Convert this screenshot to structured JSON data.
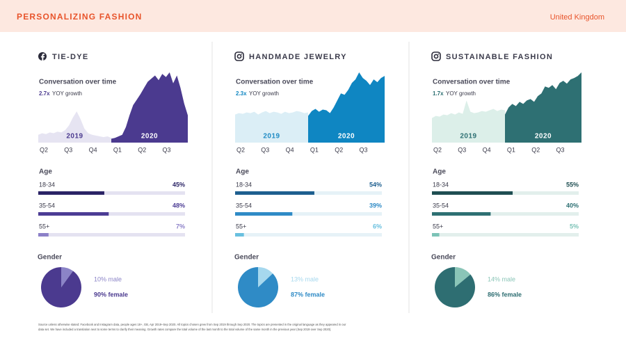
{
  "header": {
    "title": "PERSONALIZING FASHION",
    "region": "United Kingdom"
  },
  "panels": [
    {
      "icon": "facebook",
      "title": "TIE-DYE",
      "conversation": {
        "title": "Conversation over time",
        "growth": "2.7x",
        "growth_label": "YOY growth",
        "quarters": [
          "Q2",
          "Q3",
          "Q4",
          "Q1",
          "Q2",
          "Q3"
        ],
        "series": [
          {
            "name": "2019",
            "color": "#e6e4f2",
            "label_color": "#4b3a8f",
            "values": [
              10,
              12,
              11,
              13,
              12,
              14,
              13,
              16,
              22,
              32,
              40,
              30,
              18,
              12,
              10,
              9,
              8,
              7,
              8,
              6
            ]
          },
          {
            "name": "2020",
            "color": "#4b3a8f",
            "label_color": "#ffffff",
            "values": [
              5,
              6,
              8,
              10,
              20,
              35,
              48,
              55,
              62,
              70,
              78,
              82,
              86,
              80,
              88,
              84,
              90,
              76,
              86,
              70,
              50,
              35
            ]
          }
        ]
      },
      "age": {
        "title": "Age",
        "categories": [
          "18-34",
          "35-54",
          "55+"
        ],
        "values": [
          45,
          48,
          7
        ],
        "value_labels": [
          "45%",
          "48%",
          "7%"
        ],
        "xlim": [
          0,
          100
        ],
        "colors": [
          "#2b2466",
          "#4c3c95",
          "#8c80c8"
        ],
        "track_color": "#e4e2f1"
      },
      "gender": {
        "title": "Gender",
        "values": [
          10,
          90
        ],
        "value_labels": [
          "10% male",
          "90% female"
        ],
        "colors": [
          "#8b84c7",
          "#4b3a8f"
        ]
      }
    },
    {
      "icon": "instagram",
      "title": "HANDMADE JEWELRY",
      "conversation": {
        "title": "Conversation over time",
        "growth": "2.3x",
        "growth_label": "YOY growth",
        "quarters": [
          "Q2",
          "Q3",
          "Q4",
          "Q1",
          "Q2",
          "Q3"
        ],
        "series": [
          {
            "name": "2019",
            "color": "#dbeef6",
            "label_color": "#1f8bc4",
            "values": [
              40,
              42,
              41,
              43,
              42,
              44,
              40,
              43,
              45,
              42,
              44,
              43,
              41,
              44,
              42,
              43,
              45,
              44,
              42,
              43
            ]
          },
          {
            "name": "2020",
            "color": "#0f86c2",
            "label_color": "#ffffff",
            "values": [
              38,
              45,
              48,
              44,
              47,
              46,
              42,
              50,
              60,
              70,
              68,
              75,
              85,
              90,
              100,
              92,
              88,
              82,
              90,
              86,
              92,
              95
            ]
          }
        ]
      },
      "age": {
        "title": "Age",
        "categories": [
          "18-34",
          "35-54",
          "55+"
        ],
        "values": [
          54,
          39,
          6
        ],
        "value_labels": [
          "54%",
          "39%",
          "6%"
        ],
        "xlim": [
          0,
          100
        ],
        "colors": [
          "#1e5f8f",
          "#2f8bc6",
          "#69c0df"
        ],
        "track_color": "#e6f2f7"
      },
      "gender": {
        "title": "Gender",
        "values": [
          13,
          87
        ],
        "value_labels": [
          "13% male",
          "87% female"
        ],
        "colors": [
          "#a6d8ee",
          "#2f8bc6"
        ]
      }
    },
    {
      "icon": "instagram",
      "title": "SUSTAINABLE FASHION",
      "conversation": {
        "title": "Conversation over time",
        "growth": "1.7x",
        "growth_label": "YOY growth",
        "quarters": [
          "Q2",
          "Q3",
          "Q4",
          "Q1",
          "Q2",
          "Q3"
        ],
        "series": [
          {
            "name": "2019",
            "color": "#dcefe9",
            "label_color": "#2e7073",
            "values": [
              35,
              38,
              37,
              40,
              39,
              42,
              40,
              43,
              41,
              60,
              44,
              42,
              43,
              45,
              44,
              46,
              48,
              45,
              47,
              46
            ]
          },
          {
            "name": "2020",
            "color": "#2e7073",
            "label_color": "#ffffff",
            "values": [
              40,
              50,
              55,
              52,
              58,
              55,
              60,
              62,
              58,
              66,
              70,
              80,
              78,
              82,
              76,
              85,
              88,
              84,
              90,
              92,
              95,
              100
            ]
          }
        ]
      },
      "age": {
        "title": "Age",
        "categories": [
          "18-34",
          "35-54",
          "55+"
        ],
        "values": [
          55,
          40,
          5
        ],
        "value_labels": [
          "55%",
          "40%",
          "5%"
        ],
        "xlim": [
          0,
          100
        ],
        "colors": [
          "#1f4e52",
          "#2e7073",
          "#7cc3b7"
        ],
        "track_color": "#e2efec"
      },
      "gender": {
        "title": "Gender",
        "values": [
          14,
          86
        ],
        "value_labels": [
          "14% male",
          "86% female"
        ],
        "colors": [
          "#8ac5b7",
          "#2e6e72"
        ]
      }
    }
  ],
  "footnote": [
    "Source unless otherwise stated: Facebook and Instagram data, people ages 18+, GB, Apr 2019–Sep 2020. All topics chosen grew from Sep 2019 through Sep 2020. The topics are presented in the original language as they appeared in our",
    "data set. We have included a translation next to some terms to clarify their meaning. Growth rates compare the total volume of the last month to the total volume of the same month in the previous year (Sep 2019 over Sep 2020)."
  ]
}
